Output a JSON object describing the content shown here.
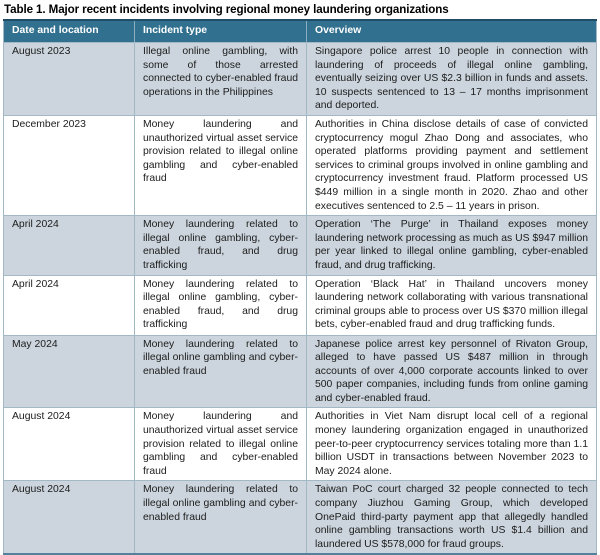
{
  "title": "Table 1. Major recent incidents involving regional money laundering organizations",
  "colors": {
    "header_bg": "#31708E",
    "header_text": "#FFFFFF",
    "row_alt_bg": "#CCD5DD",
    "row_bg": "#FFFFFF",
    "border": "#A3B8C5",
    "border_top": "#1F4D66",
    "border_bottom": "#54809B",
    "text": "#1C1C1C",
    "title_text": "#000000"
  },
  "table": {
    "columns": [
      "Date and location",
      "Incident type",
      "Overview"
    ],
    "rows": [
      {
        "date": "August 2023",
        "incident_type": "Illegal online gambling, with some of those arrested connected to cyber-enabled fraud operations in the Philippines",
        "overview": "Singapore police arrest 10 people in connection with laundering of proceeds of illegal online gambling, eventually seizing over US $2.3 billion in funds and assets. 10 suspects sentenced to 13 – 17 months imprisonment and deported."
      },
      {
        "date": "December 2023",
        "incident_type": "Money laundering and unauthorized virtual asset service provision related to illegal online gambling and cyber-enabled fraud",
        "overview": "Authorities in China disclose details of case of convicted cryptocurrency mogul Zhao Dong and associates, who operated platforms providing payment and settlement services to criminal groups involved in online gambling and cryptocurrency investment fraud. Platform processed US $449 million in a single month in 2020. Zhao and other executives sentenced to 2.5 – 11 years in prison."
      },
      {
        "date": "April 2024",
        "incident_type": "Money laundering related to illegal online gambling, cyber-enabled fraud, and drug trafficking",
        "overview": "Operation ‘The Purge’ in Thailand exposes money laundering network processing as much as US $947 million per year linked to illegal online gambling, cyber-enabled fraud, and drug trafficking."
      },
      {
        "date": "April 2024",
        "incident_type": "Money laundering related to illegal online gambling, cyber-enabled fraud, and drug trafficking",
        "overview": "Operation ‘Black Hat’ in Thailand uncovers money laundering network collaborating with various transnational criminal groups able to process over US $370 million illegal bets, cyber-enabled fraud and drug trafficking funds."
      },
      {
        "date": "May 2024",
        "incident_type": "Money laundering related to illegal online gambling and cyber-enabled fraud",
        "overview": "Japanese police arrest key personnel of Rivaton Group, alleged to have passed US $487 million in through accounts of over 4,000 corporate accounts linked to over 500 paper companies, including funds from online gaming and cyber-enabled fraud."
      },
      {
        "date": "August 2024",
        "incident_type": "Money laundering and unauthorized virtual asset service provision related to illegal online gambling and cyber-enabled fraud",
        "overview": "Authorities in Viet Nam disrupt local cell of a regional money laundering organization engaged in unauthorized peer-to-peer cryptocurrency services totaling more than 1.1 billion USDT in transactions between November 2023 to May 2024 alone."
      },
      {
        "date": "August 2024",
        "incident_type": "Money laundering related to illegal online gambling and cyber-enabled fraud",
        "overview": "Taiwan PoC court charged 32 people connected to tech company Jiuzhou Gaming Group, which developed OnePaid third-party payment app that allegedly handled online gambling transactions worth US $1.4 billion and laundered US $578,000 for fraud groups."
      }
    ]
  }
}
